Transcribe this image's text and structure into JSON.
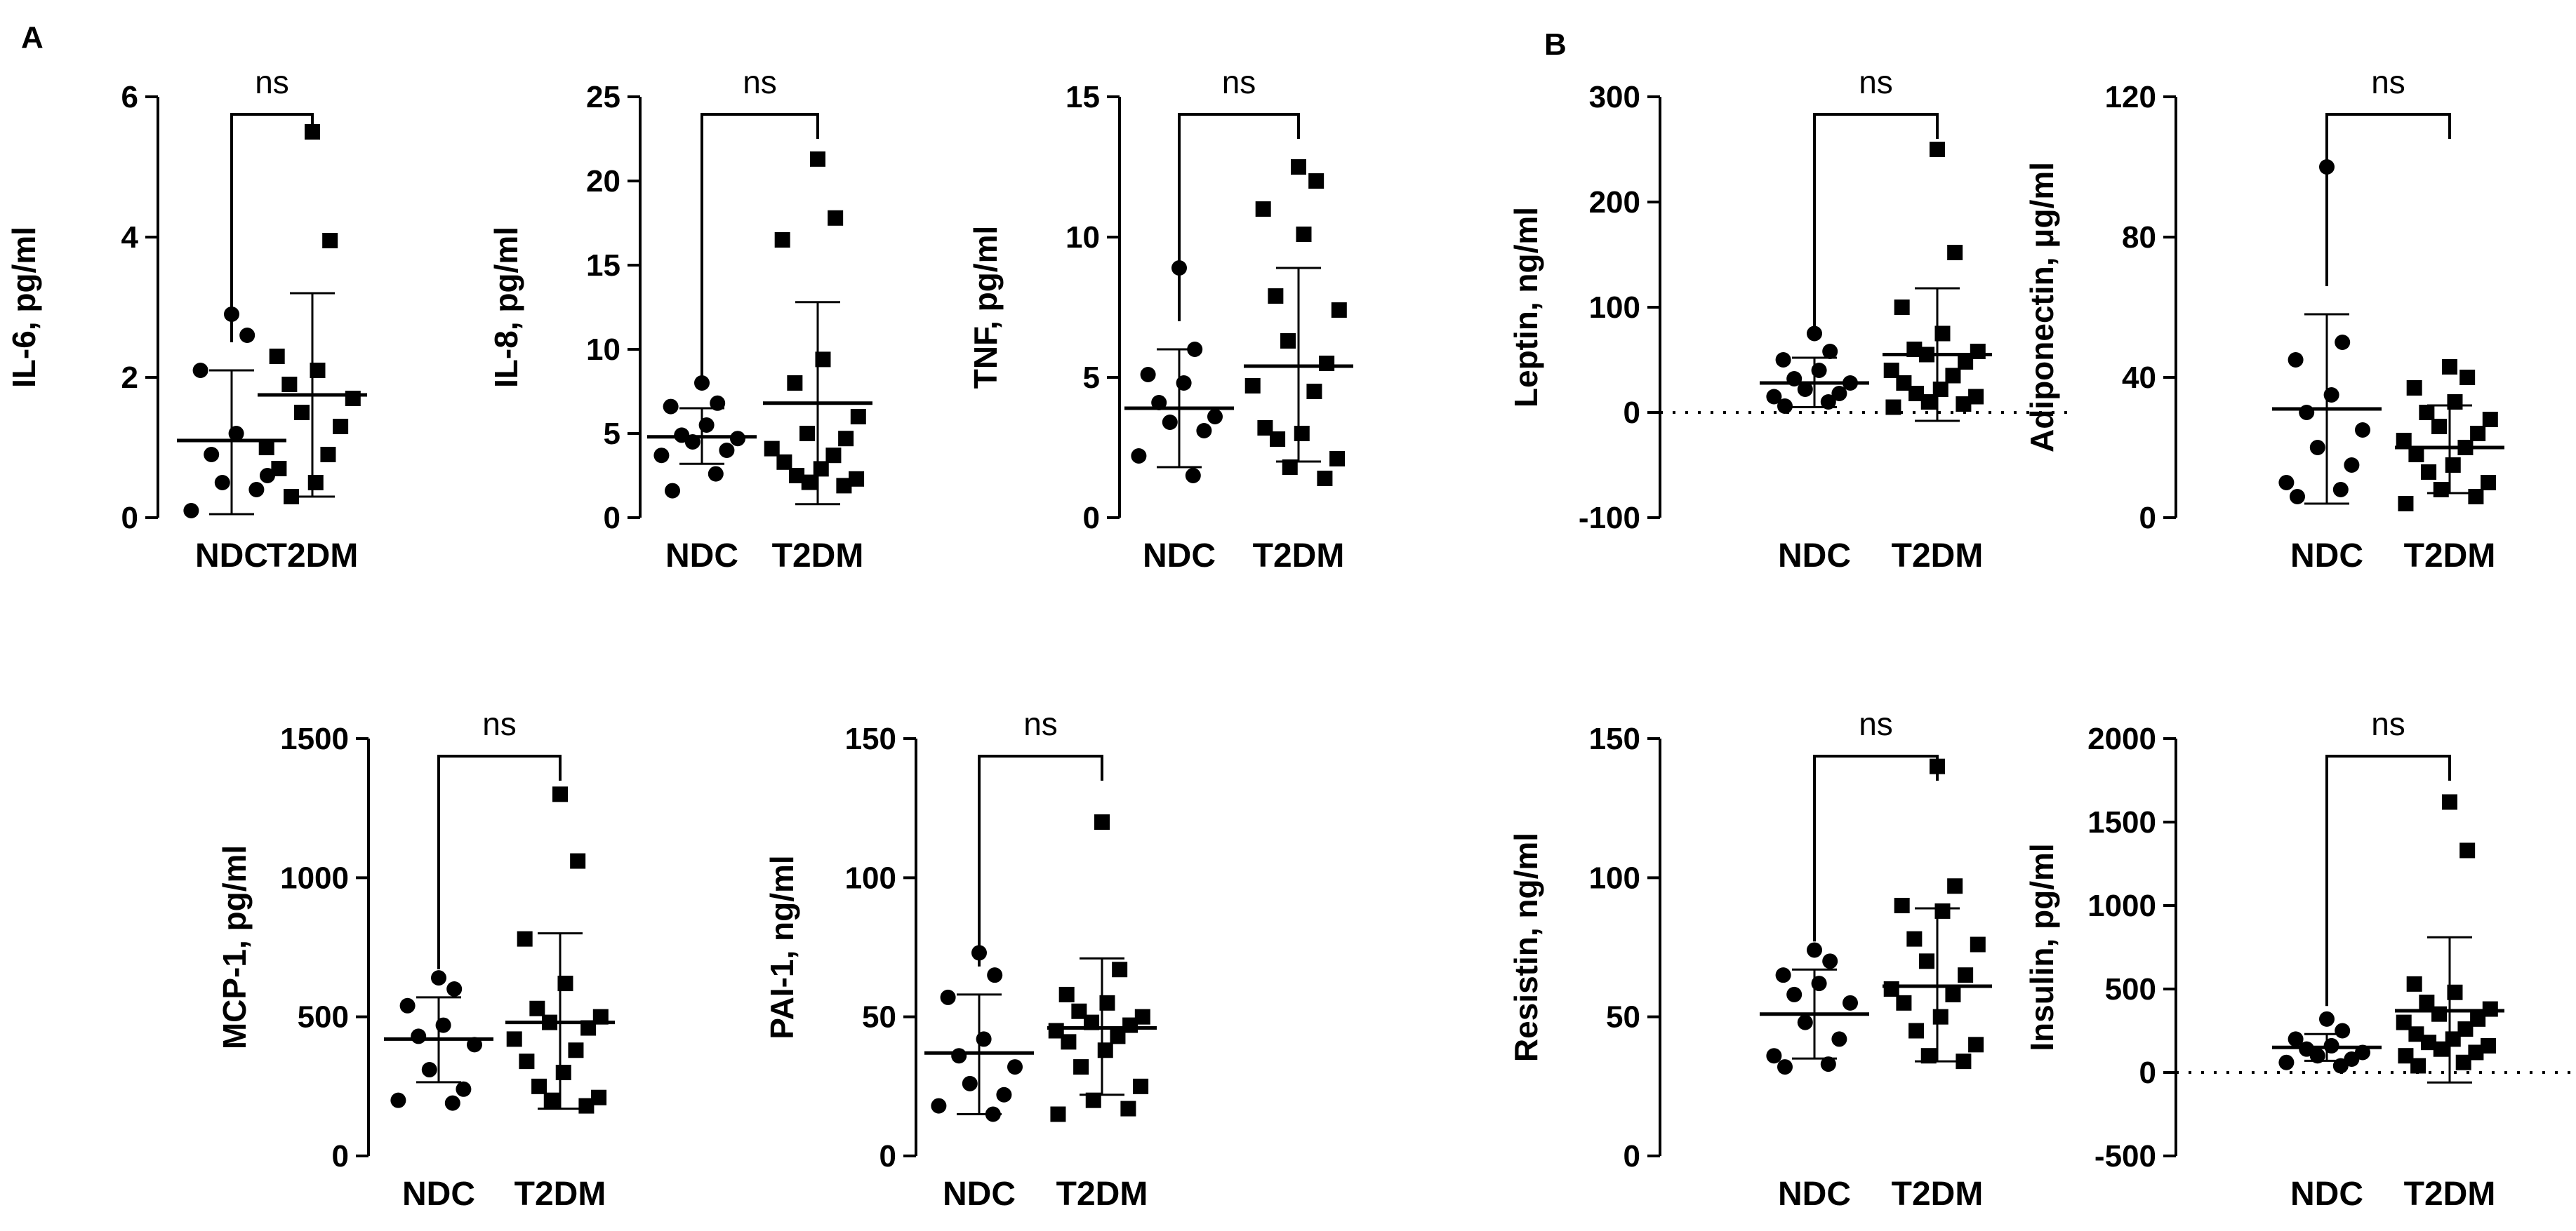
{
  "panels": [
    {
      "letter": "A"
    },
    {
      "letter": "B"
    }
  ],
  "chart_data": [
    {
      "type": "scatter",
      "panel": "A",
      "ylabel": "IL-6, pg/ml",
      "categories": [
        "NDC",
        "T2DM"
      ],
      "ylim": [
        0,
        6
      ],
      "yticks": [
        0,
        2,
        4,
        6
      ],
      "ytick_labels": [
        "0",
        "2",
        "4",
        "6"
      ],
      "zero_line": false,
      "annotation": "ns",
      "series": [
        {
          "values": [
            2.9,
            2.6,
            2.1,
            1.2,
            0.9,
            0.6,
            0.5,
            0.4,
            0.1
          ],
          "mean": 1.1,
          "sd_low": 0.05,
          "sd_high": 2.1
        },
        {
          "values": [
            5.5,
            3.95,
            2.3,
            2.1,
            1.9,
            1.7,
            1.5,
            1.3,
            1.0,
            0.9,
            0.7,
            0.5,
            0.3
          ],
          "mean": 1.75,
          "sd_low": 0.3,
          "sd_high": 3.2
        }
      ]
    },
    {
      "type": "scatter",
      "panel": "A",
      "ylabel": "IL-8, pg/ml",
      "categories": [
        "NDC",
        "T2DM"
      ],
      "ylim": [
        0,
        25
      ],
      "yticks": [
        0,
        5,
        10,
        15,
        20,
        25
      ],
      "ytick_labels": [
        "0",
        "5",
        "10",
        "15",
        "20",
        "25"
      ],
      "zero_line": false,
      "annotation": "ns",
      "series": [
        {
          "values": [
            8.0,
            6.8,
            6.6,
            5.5,
            4.9,
            4.7,
            4.5,
            4.0,
            3.7,
            2.6,
            1.6
          ],
          "mean": 4.8,
          "sd_low": 3.2,
          "sd_high": 6.5
        },
        {
          "values": [
            21.3,
            17.8,
            16.5,
            9.4,
            8.0,
            6.0,
            5.0,
            4.7,
            4.1,
            3.7,
            3.3,
            2.9,
            2.5,
            2.3,
            2.1,
            1.9
          ],
          "mean": 6.8,
          "sd_low": 0.8,
          "sd_high": 12.8
        }
      ]
    },
    {
      "type": "scatter",
      "panel": "A",
      "ylabel": "TNF, pg/ml",
      "categories": [
        "NDC",
        "T2DM"
      ],
      "ylim": [
        0,
        15
      ],
      "yticks": [
        0,
        5,
        10,
        15
      ],
      "ytick_labels": [
        "0",
        "5",
        "10",
        "15"
      ],
      "zero_line": false,
      "annotation": "ns",
      "series": [
        {
          "values": [
            8.9,
            6.0,
            5.1,
            4.8,
            4.1,
            3.6,
            3.4,
            3.1,
            2.2,
            1.5
          ],
          "mean": 3.9,
          "sd_low": 1.8,
          "sd_high": 6.0
        },
        {
          "values": [
            12.5,
            12.0,
            11.0,
            10.1,
            7.9,
            7.4,
            6.3,
            5.5,
            4.7,
            4.5,
            3.2,
            3.0,
            2.8,
            2.1,
            1.8,
            1.4
          ],
          "mean": 5.4,
          "sd_low": 2.0,
          "sd_high": 8.9
        }
      ]
    },
    {
      "type": "scatter",
      "panel": "B",
      "ylabel": "Leptin, ng/ml",
      "categories": [
        "NDC",
        "T2DM"
      ],
      "ylim": [
        -100,
        300
      ],
      "yticks": [
        -100,
        0,
        100,
        200,
        300
      ],
      "ytick_labels": [
        "-100",
        "0",
        "100",
        "200",
        "300"
      ],
      "zero_line": true,
      "annotation": "ns",
      "series": [
        {
          "values": [
            75,
            58,
            50,
            40,
            32,
            28,
            22,
            18,
            15,
            10,
            6
          ],
          "mean": 28,
          "sd_low": 5,
          "sd_high": 52
        },
        {
          "values": [
            250,
            152,
            100,
            75,
            60,
            58,
            55,
            48,
            40,
            35,
            28,
            22,
            18,
            15,
            10,
            8,
            5
          ],
          "mean": 55,
          "sd_low": -8,
          "sd_high": 118
        }
      ]
    },
    {
      "type": "scatter",
      "panel": "B",
      "ylabel": "Adiponectin, μg/ml",
      "categories": [
        "NDC",
        "T2DM"
      ],
      "ylim": [
        0,
        120
      ],
      "yticks": [
        0,
        40,
        80,
        120
      ],
      "ytick_labels": [
        "0",
        "40",
        "80",
        "120"
      ],
      "zero_line": false,
      "annotation": "ns",
      "series": [
        {
          "values": [
            100,
            50,
            45,
            35,
            30,
            25,
            20,
            15,
            10,
            8,
            6
          ],
          "mean": 31,
          "sd_low": 4,
          "sd_high": 58
        },
        {
          "values": [
            43,
            40,
            37,
            33,
            30,
            28,
            26,
            24,
            22,
            20,
            18,
            15,
            13,
            10,
            8,
            6,
            4
          ],
          "mean": 20,
          "sd_low": 7,
          "sd_high": 32
        }
      ]
    },
    {
      "type": "scatter",
      "panel": "A",
      "ylabel": "MCP-1, pg/ml",
      "categories": [
        "NDC",
        "T2DM"
      ],
      "ylim": [
        0,
        1500
      ],
      "yticks": [
        0,
        500,
        1000,
        1500
      ],
      "ytick_labels": [
        "0",
        "500",
        "1000",
        "1500"
      ],
      "zero_line": false,
      "annotation": "ns",
      "series": [
        {
          "values": [
            640,
            600,
            540,
            470,
            430,
            400,
            310,
            240,
            200,
            190
          ],
          "mean": 420,
          "sd_low": 265,
          "sd_high": 570
        },
        {
          "values": [
            1300,
            1060,
            780,
            620,
            530,
            500,
            480,
            460,
            420,
            380,
            340,
            300,
            250,
            210,
            200,
            180
          ],
          "mean": 480,
          "sd_low": 170,
          "sd_high": 800
        }
      ]
    },
    {
      "type": "scatter",
      "panel": "A",
      "ylabel": "PAI-1, ng/ml",
      "categories": [
        "NDC",
        "T2DM"
      ],
      "ylim": [
        0,
        150
      ],
      "yticks": [
        0,
        50,
        100,
        150
      ],
      "ytick_labels": [
        "0",
        "50",
        "100",
        "150"
      ],
      "zero_line": false,
      "annotation": "ns",
      "series": [
        {
          "values": [
            73,
            65,
            57,
            42,
            36,
            32,
            26,
            22,
            18,
            15
          ],
          "mean": 37,
          "sd_low": 15,
          "sd_high": 58
        },
        {
          "values": [
            120,
            67,
            58,
            55,
            52,
            50,
            48,
            47,
            45,
            43,
            41,
            38,
            32,
            25,
            20,
            17,
            15
          ],
          "mean": 46,
          "sd_low": 22,
          "sd_high": 71
        }
      ]
    },
    {
      "type": "scatter",
      "panel": "B",
      "ylabel": "Resistin, ng/ml",
      "categories": [
        "NDC",
        "T2DM"
      ],
      "ylim": [
        0,
        150
      ],
      "yticks": [
        0,
        50,
        100,
        150
      ],
      "ytick_labels": [
        "0",
        "50",
        "100",
        "150"
      ],
      "zero_line": false,
      "annotation": "ns",
      "series": [
        {
          "values": [
            74,
            70,
            65,
            62,
            58,
            55,
            48,
            42,
            36,
            33,
            32
          ],
          "mean": 51,
          "sd_low": 35,
          "sd_high": 67
        },
        {
          "values": [
            140,
            97,
            90,
            88,
            78,
            76,
            70,
            65,
            60,
            58,
            55,
            50,
            45,
            40,
            36,
            34
          ],
          "mean": 61,
          "sd_low": 34,
          "sd_high": 89
        }
      ]
    },
    {
      "type": "scatter",
      "panel": "B",
      "ylabel": "Insulin, pg/ml",
      "categories": [
        "NDC",
        "T2DM"
      ],
      "ylim": [
        -500,
        2000
      ],
      "yticks": [
        -500,
        0,
        500,
        1000,
        1500,
        2000
      ],
      "ytick_labels": [
        "-500",
        "0",
        "500",
        "1000",
        "1500",
        "2000"
      ],
      "zero_line": true,
      "annotation": "ns",
      "series": [
        {
          "values": [
            320,
            250,
            200,
            160,
            140,
            120,
            100,
            80,
            60,
            40
          ],
          "mean": 150,
          "sd_low": 70,
          "sd_high": 230
        },
        {
          "values": [
            1620,
            1330,
            530,
            480,
            420,
            380,
            350,
            320,
            300,
            260,
            230,
            200,
            180,
            160,
            140,
            120,
            100,
            60,
            40
          ],
          "mean": 370,
          "sd_low": -60,
          "sd_high": 810
        }
      ]
    }
  ]
}
